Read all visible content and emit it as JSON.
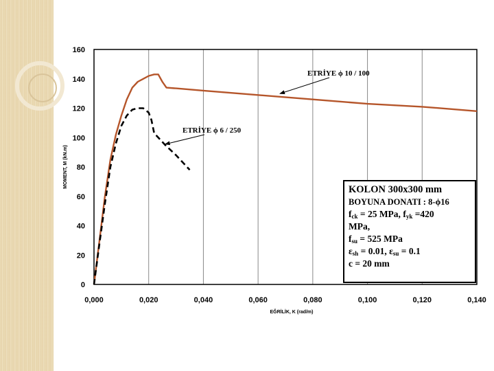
{
  "chart_data": {
    "type": "line",
    "title": "",
    "xlabel": "EĞRİLİK, K (rad/m)",
    "ylabel": "MOMENT, M (kN.m)",
    "xlim": [
      0,
      0.14
    ],
    "ylim": [
      0,
      160
    ],
    "x_ticks": [
      "0,000",
      "0,020",
      "0,040",
      "0,060",
      "0,080",
      "0,100",
      "0,120",
      "0,140"
    ],
    "y_ticks": [
      "0",
      "20",
      "40",
      "60",
      "80",
      "100",
      "120",
      "140",
      "160"
    ],
    "grid": "vertical",
    "series": [
      {
        "name": "ETRİYE ϕ10 / 100",
        "color": "#b5552a",
        "style": "solid",
        "points": [
          [
            0,
            0
          ],
          [
            0.002,
            30
          ],
          [
            0.004,
            60
          ],
          [
            0.006,
            85
          ],
          [
            0.008,
            102
          ],
          [
            0.01,
            115
          ],
          [
            0.012,
            126
          ],
          [
            0.014,
            134
          ],
          [
            0.016,
            138
          ],
          [
            0.018,
            140
          ],
          [
            0.02,
            142
          ],
          [
            0.022,
            143
          ],
          [
            0.0235,
            143
          ],
          [
            0.025,
            138
          ],
          [
            0.0265,
            134
          ],
          [
            0.03,
            133.5
          ],
          [
            0.04,
            132
          ],
          [
            0.06,
            129
          ],
          [
            0.08,
            126
          ],
          [
            0.1,
            123
          ],
          [
            0.12,
            121
          ],
          [
            0.14,
            118
          ]
        ]
      },
      {
        "name": "ETRİYE ϕ6 / 250",
        "color": "#000000",
        "style": "dashed",
        "points": [
          [
            0,
            0
          ],
          [
            0.002,
            28
          ],
          [
            0.004,
            55
          ],
          [
            0.006,
            80
          ],
          [
            0.008,
            96
          ],
          [
            0.01,
            108
          ],
          [
            0.012,
            115
          ],
          [
            0.014,
            119
          ],
          [
            0.016,
            120
          ],
          [
            0.018,
            120
          ],
          [
            0.02,
            117
          ],
          [
            0.021,
            112
          ],
          [
            0.022,
            103
          ],
          [
            0.024,
            99
          ],
          [
            0.026,
            95
          ],
          [
            0.03,
            88
          ],
          [
            0.035,
            78
          ]
        ]
      }
    ],
    "annotations": [
      {
        "label": "ETRİYE  ϕ 10 / 100",
        "arrow_to": [
          0.068,
          129
        ]
      },
      {
        "label": "ETRİYE  ϕ 6 / 250",
        "arrow_to": [
          0.025,
          95
        ]
      }
    ]
  },
  "info_box": {
    "line1": "KOLON  300x300 mm",
    "line2": "BOYUNA DONATI : 8-ϕ16",
    "fck_f": "f",
    "fck_sub": "ck",
    "fck_val": " = 25 MPa,   ",
    "fyk_f": "f",
    "fyk_sub": "yk",
    "fyk_val": " =420",
    "line4": "MPa,",
    "fsu_f": "f",
    "fsu_sub": "su",
    "fsu_val": " = 525 MPa",
    "esh_e": "ε",
    "esh_sub": "sh",
    "esh_val": " = 0.01,  ",
    "esu_e": "ε",
    "esu_sub": "su",
    "esu_val": " = 0.1",
    "line7": "c = 20 mm"
  },
  "colors": {
    "steel_curve": "#b5552a",
    "dashed_curve": "#000000",
    "side_strip": "#e8d6ae"
  }
}
